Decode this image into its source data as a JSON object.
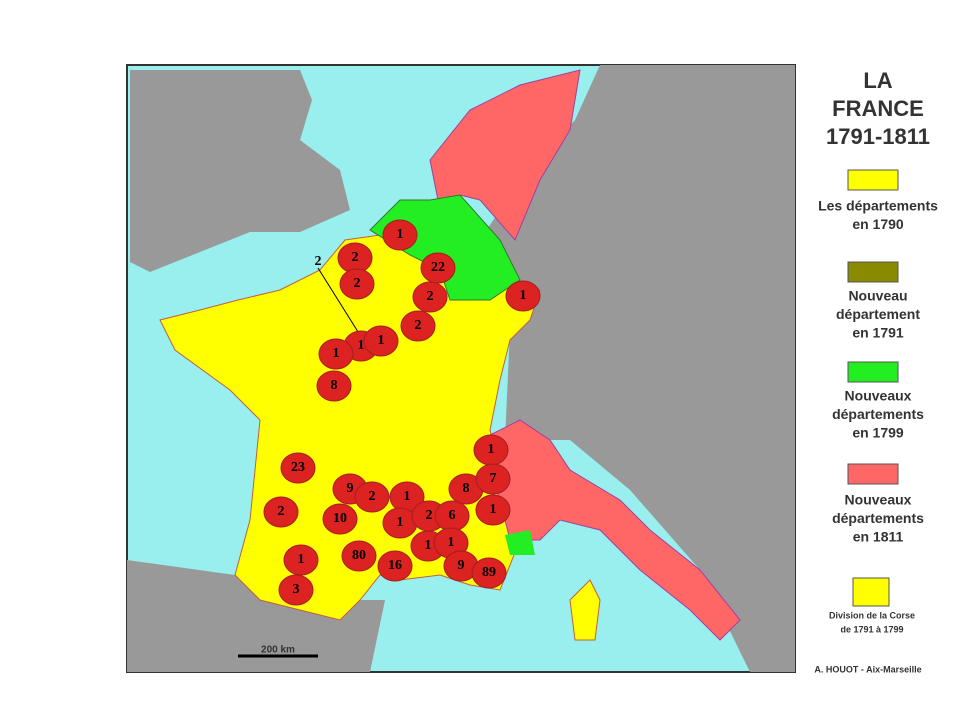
{
  "title": [
    "LA",
    "FRANCE",
    "1791-1811"
  ],
  "legend": [
    {
      "color": "#ffff00",
      "lines": [
        "Les départements",
        "en 1790"
      ]
    },
    {
      "color": "#8a8a00",
      "lines": [
        "Nouveau",
        "département",
        "en 1791"
      ]
    },
    {
      "color": "#22ee22",
      "lines": [
        "Nouveaux",
        "départements",
        "en 1799"
      ]
    },
    {
      "color": "#ff6666",
      "lines": [
        "Nouveaux",
        "départements",
        "en 1811"
      ]
    },
    {
      "color": "#ffff00",
      "lines": [
        "Division de la Corse",
        "de 1791 à 1799"
      ]
    }
  ],
  "scale": "200 km",
  "credit": "A. HOUOT - Aix-Marseille",
  "labels": [
    "1",
    "2",
    "2",
    "2",
    "22",
    "2",
    "1",
    "2",
    "1",
    "1",
    "1",
    "8",
    "23",
    "9",
    "2",
    "1",
    "8",
    "1",
    "7",
    "2",
    "10",
    "1",
    "2",
    "6",
    "1",
    "1",
    "1",
    "1",
    "80",
    "16",
    "9",
    "89",
    "3"
  ]
}
